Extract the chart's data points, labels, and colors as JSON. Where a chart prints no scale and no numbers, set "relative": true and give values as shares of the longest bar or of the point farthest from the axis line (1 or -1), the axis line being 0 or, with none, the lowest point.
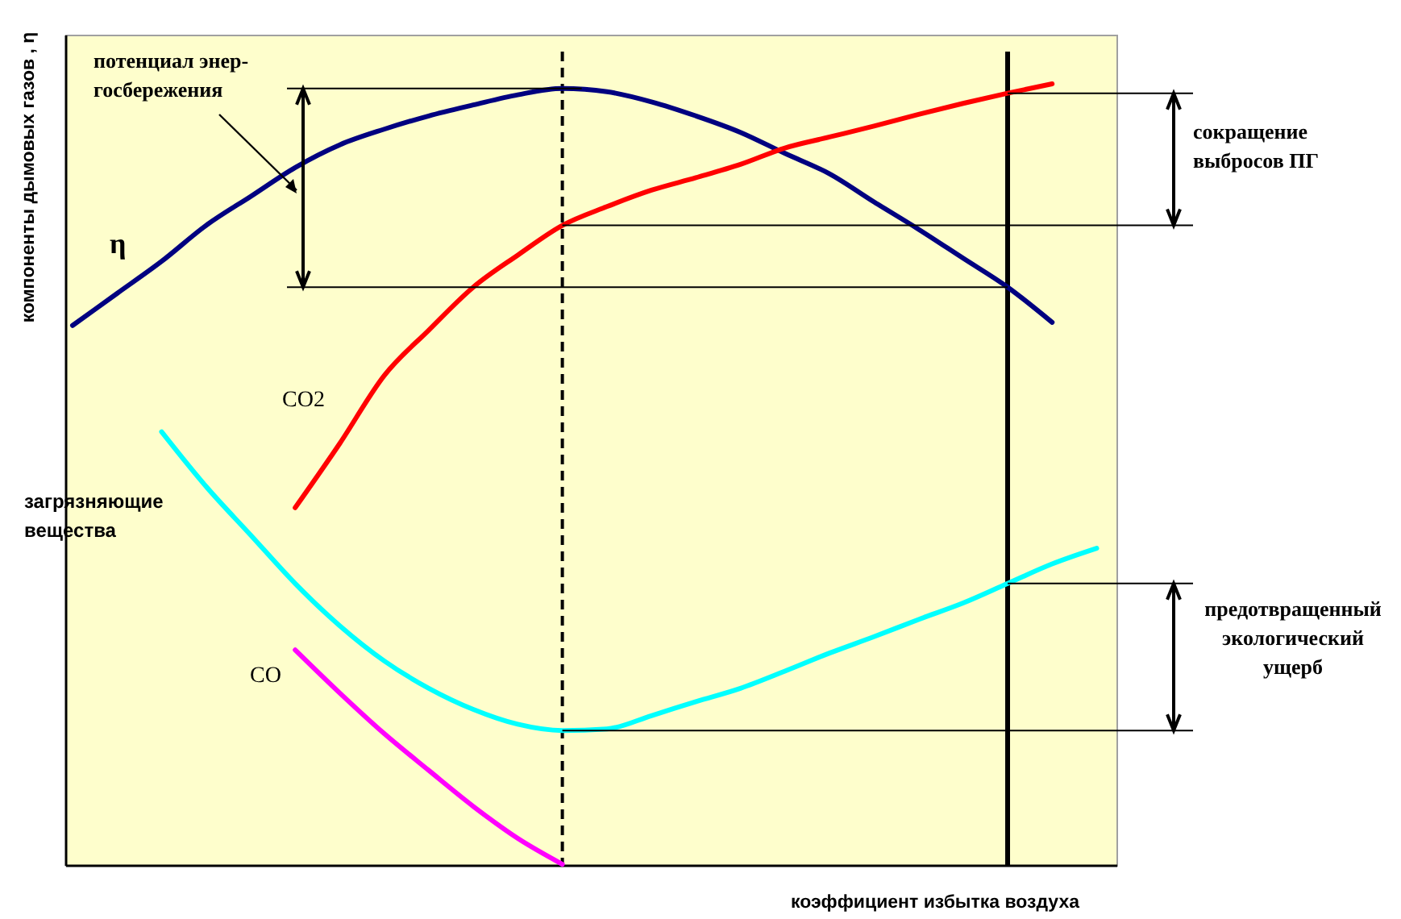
{
  "chart_data": {
    "type": "line",
    "relative": true,
    "xlabel": "коэффициент избытка воздуха",
    "ylabel": "компоненты дымовых газов , η",
    "categories": [
      null,
      null,
      null,
      null,
      null,
      null,
      null,
      null,
      null,
      null,
      null,
      null,
      null,
      null,
      null,
      null,
      null,
      null,
      null,
      null,
      null,
      null,
      null,
      null
    ],
    "series": [
      {
        "name": "η",
        "color": "#000080",
        "values": [
          0.691,
          0.732,
          0.773,
          0.819,
          0.856,
          0.893,
          0.922,
          0.942,
          0.959,
          0.973,
          0.986,
          0.994,
          0.99,
          0.977,
          0.959,
          0.938,
          0.911,
          0.885,
          0.849,
          0.814,
          0.777,
          0.74,
          0.695,
          null
        ]
      },
      {
        "name": "CO2",
        "color": "#ff0000",
        "values": [
          null,
          null,
          null,
          null,
          null,
          0.458,
          0.54,
          0.627,
          0.685,
          0.74,
          0.781,
          0.819,
          0.843,
          0.864,
          0.88,
          0.897,
          0.918,
          0.932,
          0.946,
          0.961,
          0.975,
          0.988,
          1.0,
          null
        ]
      },
      {
        "name": "загрязняющие вещества",
        "color": "#00ffff",
        "values": [
          null,
          null,
          0.555,
          0.485,
          0.423,
          0.361,
          0.307,
          0.262,
          0.227,
          0.2,
          0.181,
          0.173,
          0.175,
          0.192,
          0.21,
          0.227,
          0.249,
          0.272,
          0.293,
          0.315,
          0.336,
          0.361,
          0.386,
          0.406
        ]
      },
      {
        "name": "CO",
        "color": "#ff00ff",
        "values": [
          null,
          null,
          null,
          null,
          null,
          0.276,
          0.221,
          0.169,
          0.122,
          0.076,
          0.035,
          0.002,
          null,
          null,
          null,
          null,
          null,
          null,
          null,
          null,
          null,
          null,
          null,
          null
        ]
      }
    ],
    "annotations": [
      "потенциал энер-госбережения",
      "сокращение выбросов ПГ",
      "предотвращенный экологический ущерб"
    ],
    "ref_lines": [
      {
        "axis": "y",
        "value": 0.994,
        "color": "#000000"
      },
      {
        "axis": "y",
        "value": 0.74,
        "color": "#000000"
      },
      {
        "axis": "y",
        "value": 0.988,
        "color": "#000000"
      },
      {
        "axis": "y",
        "value": 0.819,
        "color": "#000000"
      },
      {
        "axis": "y",
        "value": 0.361,
        "color": "#000000"
      },
      {
        "axis": "y",
        "value": 0.173,
        "color": "#000000"
      }
    ],
    "marker": "none",
    "line_style": "solid"
  }
}
